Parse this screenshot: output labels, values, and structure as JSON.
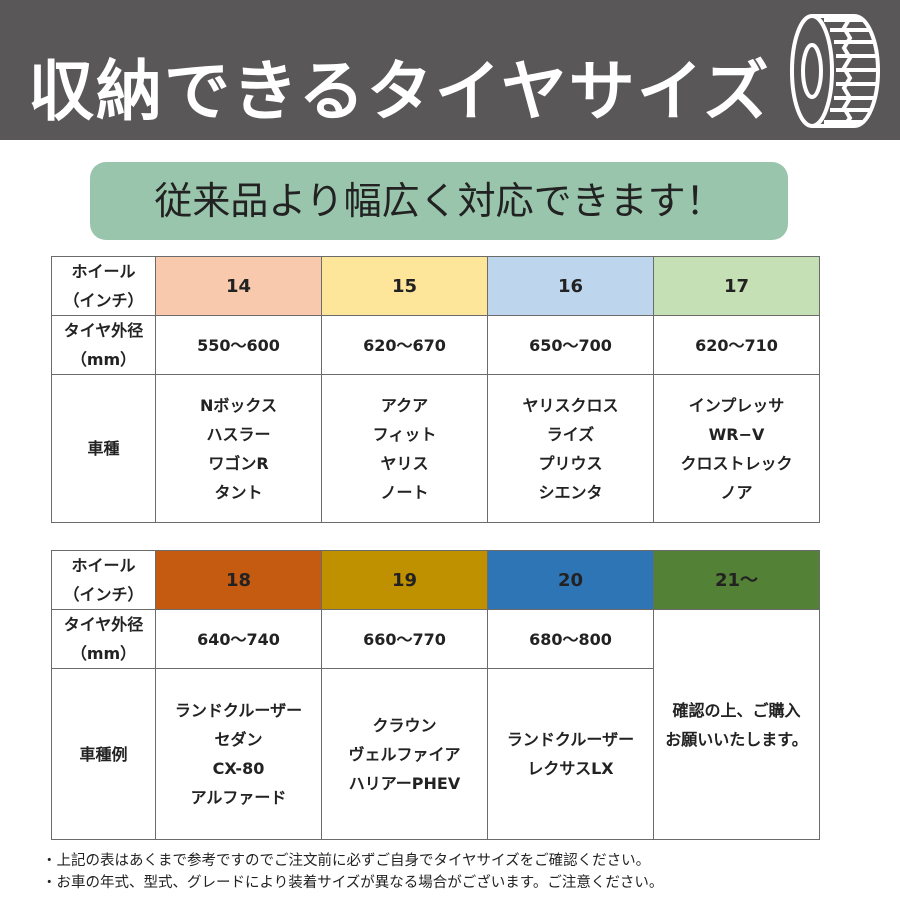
{
  "header": {
    "title": "収納できるタイヤサイズ",
    "icon": "tire-icon"
  },
  "banner": {
    "text": "従来品より幅広く対応できます！"
  },
  "table1": {
    "wheel_label": [
      "ホイール",
      "（インチ）"
    ],
    "diameter_label": [
      "タイヤ外径",
      "（mm）"
    ],
    "models_label": "車種",
    "columns": [
      {
        "size": "14",
        "color": "#f8c9ac",
        "diameter": "550〜600",
        "models": [
          "Nボックス",
          "ハスラー",
          "ワゴンR",
          "タント"
        ]
      },
      {
        "size": "15",
        "color": "#fde699",
        "diameter": "620〜670",
        "models": [
          "アクア",
          "フィット",
          "ヤリス",
          "ノート"
        ]
      },
      {
        "size": "16",
        "color": "#bdd6ee",
        "diameter": "650〜700",
        "models": [
          "ヤリスクロス",
          "ライズ",
          "プリウス",
          "シエンタ"
        ]
      },
      {
        "size": "17",
        "color": "#c5e0b4",
        "diameter": "620〜710",
        "models": [
          "インプレッサ",
          "WR−V",
          "クロストレック",
          "ノア"
        ]
      }
    ]
  },
  "table2": {
    "wheel_label": [
      "ホイール",
      "（インチ）"
    ],
    "diameter_label": [
      "タイヤ外径",
      "（mm）"
    ],
    "models_label": "車種例",
    "columns": [
      {
        "size": "18",
        "color": "#c55a11",
        "diameter": "640〜740",
        "models": [
          "ランドクルーザー",
          "セダン",
          "CX-80",
          "アルファード"
        ]
      },
      {
        "size": "19",
        "color": "#bf9000",
        "diameter": "660〜770",
        "models": [
          "クラウン",
          "ヴェルファイア",
          "ハリアーPHEV"
        ]
      },
      {
        "size": "20",
        "color": "#2e75b6",
        "diameter": "680〜800",
        "models": [
          "ランドクルーザー",
          "レクサスLX"
        ]
      },
      {
        "size": "21〜",
        "color": "#538135",
        "merged_note": [
          "確認の上、ご購入",
          "お願いいたします。"
        ]
      }
    ]
  },
  "notes": [
    "・上記の表はあくまで参考ですのでご注文前に必ずご自身でタイヤサイズをご確認ください。",
    "・お車の年式、型式、グレードにより装着サイズが異なる場合がございます。ご注意ください。"
  ]
}
